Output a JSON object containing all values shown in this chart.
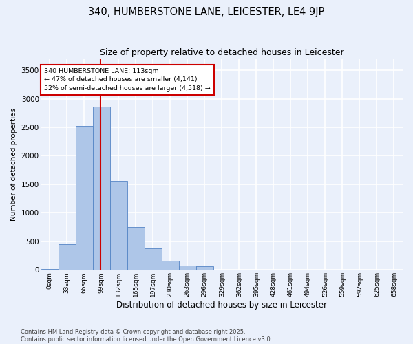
{
  "title_line1": "340, HUMBERSTONE LANE, LEICESTER, LE4 9JP",
  "title_line2": "Size of property relative to detached houses in Leicester",
  "xlabel": "Distribution of detached houses by size in Leicester",
  "ylabel": "Number of detached properties",
  "bar_labels": [
    "0sqm",
    "33sqm",
    "66sqm",
    "99sqm",
    "132sqm",
    "165sqm",
    "197sqm",
    "230sqm",
    "263sqm",
    "296sqm",
    "329sqm",
    "362sqm",
    "395sqm",
    "428sqm",
    "461sqm",
    "494sqm",
    "526sqm",
    "559sqm",
    "592sqm",
    "625sqm",
    "658sqm"
  ],
  "bar_heights": [
    10,
    450,
    2530,
    2860,
    1560,
    750,
    380,
    160,
    80,
    60,
    0,
    0,
    0,
    0,
    0,
    0,
    0,
    0,
    0,
    0,
    0
  ],
  "bar_color": "#aec6e8",
  "bar_edge_color": "#5585c5",
  "bg_color": "#eaf0fb",
  "grid_color": "#ffffff",
  "vline_x": 3.45,
  "vline_color": "#cc0000",
  "annotation_text": "340 HUMBERSTONE LANE: 113sqm\n← 47% of detached houses are smaller (4,141)\n52% of semi-detached houses are larger (4,518) →",
  "annotation_box_color": "#ffffff",
  "annotation_box_edgecolor": "#cc0000",
  "ylim": [
    0,
    3700
  ],
  "yticks": [
    0,
    500,
    1000,
    1500,
    2000,
    2500,
    3000,
    3500
  ],
  "footer_text": "Contains HM Land Registry data © Crown copyright and database right 2025.\nContains public sector information licensed under the Open Government Licence v3.0.",
  "title_fontsize": 10.5,
  "subtitle_fontsize": 9,
  "annotation_fontsize": 6.8,
  "footer_fontsize": 6.0,
  "ylabel_fontsize": 7.5,
  "xlabel_fontsize": 8.5
}
